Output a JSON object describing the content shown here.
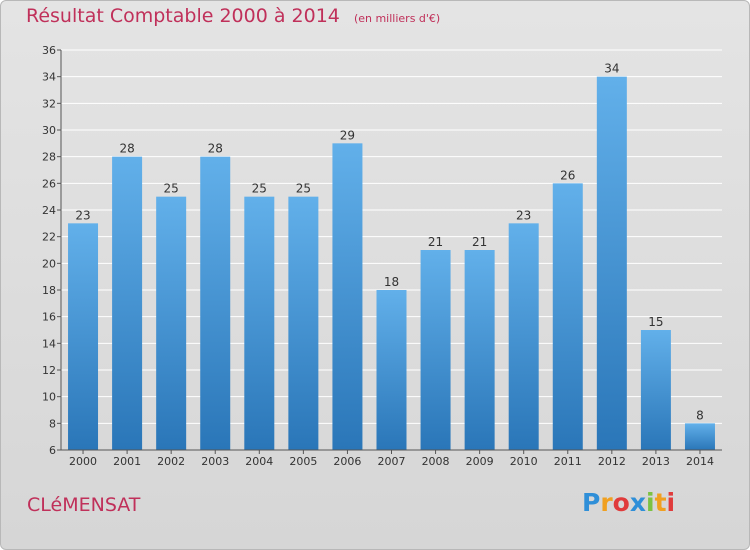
{
  "title": "Résultat Comptable 2000 à 2014",
  "unit": "(en milliers d'€)",
  "commune": "CLéMENSAT",
  "logo_letters": [
    {
      "ch": "P",
      "color": "#2f8fd8"
    },
    {
      "ch": "r",
      "color": "#f0a020"
    },
    {
      "ch": "o",
      "color": "#e03b3b"
    },
    {
      "ch": "x",
      "color": "#2f8fd8"
    },
    {
      "ch": "i",
      "color": "#7cc242"
    },
    {
      "ch": "t",
      "color": "#f0a020"
    },
    {
      "ch": "i",
      "color": "#e03b3b"
    }
  ],
  "chart_data": {
    "type": "bar",
    "categories": [
      "2000",
      "2001",
      "2002",
      "2003",
      "2004",
      "2005",
      "2006",
      "2007",
      "2008",
      "2009",
      "2010",
      "2011",
      "2012",
      "2013",
      "2014"
    ],
    "values": [
      23,
      28,
      25,
      28,
      25,
      25,
      29,
      18,
      21,
      21,
      23,
      26,
      34,
      15,
      8
    ],
    "ylim": [
      6,
      36
    ],
    "yticks": [
      6,
      8,
      10,
      12,
      14,
      16,
      18,
      20,
      22,
      24,
      26,
      28,
      30,
      32,
      34,
      36
    ],
    "grid": true,
    "bar_color_top": "#62b0ea",
    "bar_color_bottom": "#2a76b8"
  }
}
